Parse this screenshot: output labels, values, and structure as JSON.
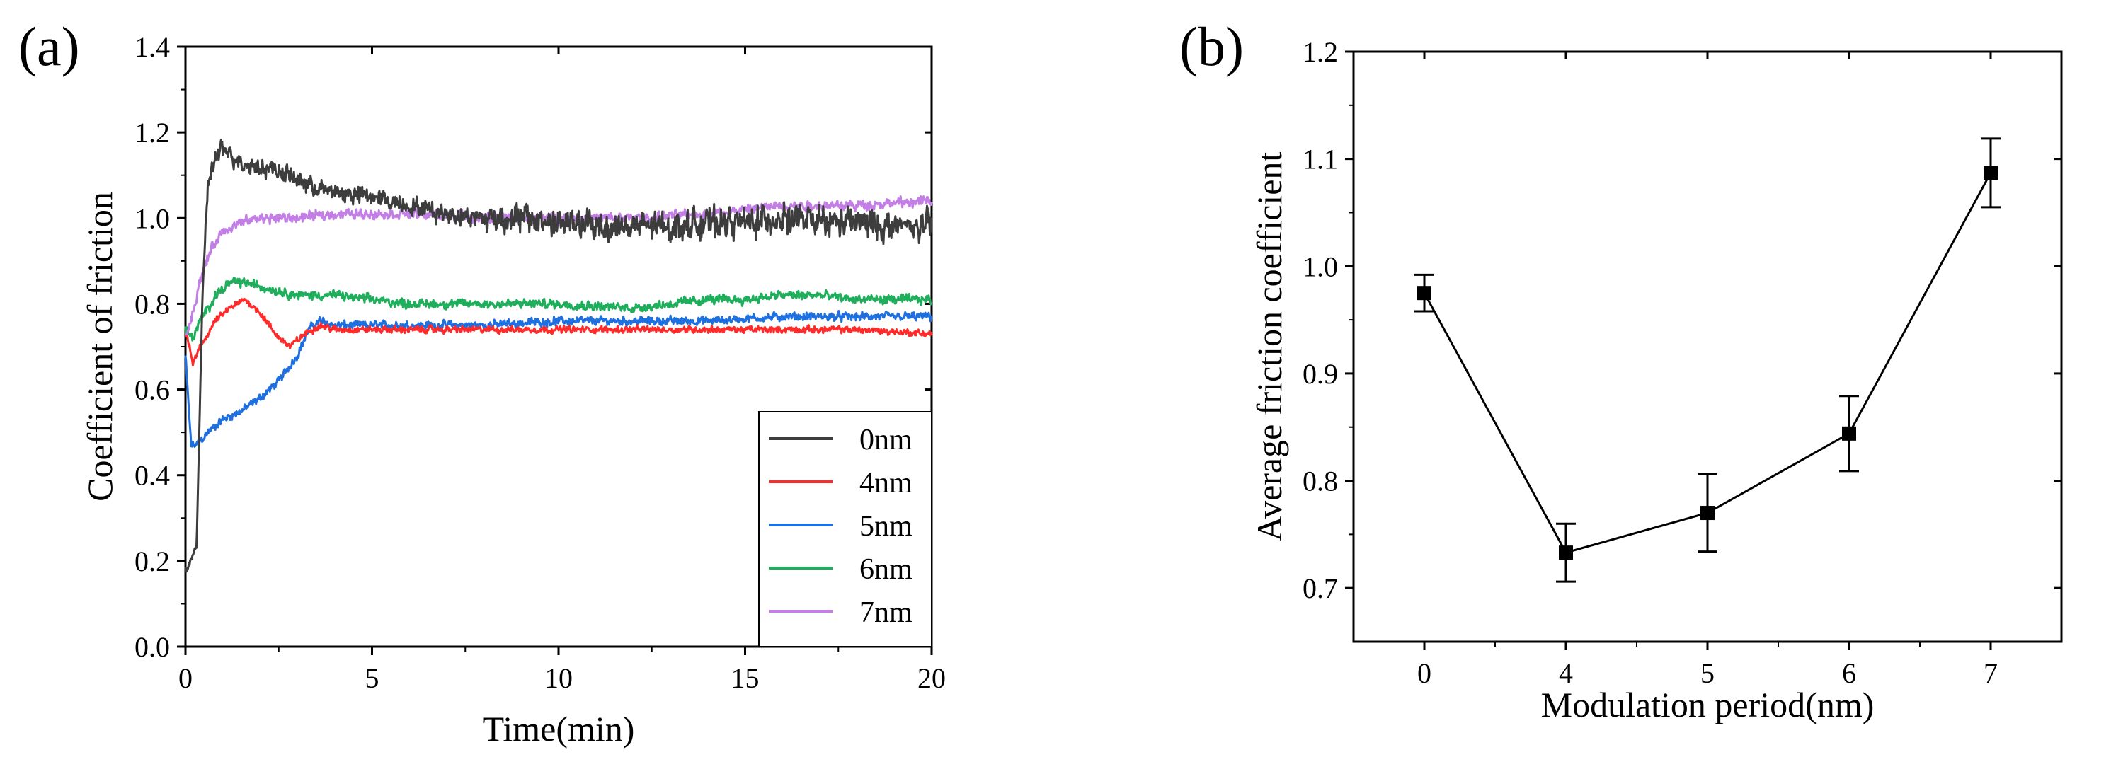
{
  "chart_data": [
    {
      "type": "line",
      "panel_label": "(a)",
      "xlabel": "Time(min)",
      "ylabel": "Coefficient of friction",
      "xlim": [
        0,
        20
      ],
      "ylim": [
        0,
        1.4
      ],
      "xticks": [
        0,
        5,
        10,
        15,
        20
      ],
      "xtick_labels": [
        "0",
        "5",
        "10",
        "15",
        "20"
      ],
      "yticks": [
        0,
        0.2,
        0.4,
        0.6,
        0.8,
        1.0,
        1.2,
        1.4
      ],
      "ytick_labels": [
        "0.0",
        "0.2",
        "0.4",
        "0.6",
        "0.8",
        "1.0",
        "1.2",
        "1.4"
      ],
      "legend_position": "bottom-right",
      "series": [
        {
          "name": "0nm",
          "color": "#3d3d3d",
          "noise": 0.022,
          "x": [
            0,
            0.15,
            0.3,
            0.45,
            0.6,
            0.8,
            1.0,
            1.5,
            2.0,
            2.5,
            3.0,
            3.5,
            4.0,
            5.0,
            6.0,
            7.0,
            8.0,
            9.0,
            10.0,
            11.0,
            12.0,
            13.0,
            14.0,
            15.0,
            16.0,
            17.0,
            18.0,
            19.0,
            20.0
          ],
          "y": [
            0.18,
            0.2,
            0.24,
            0.8,
            1.08,
            1.14,
            1.16,
            1.13,
            1.12,
            1.11,
            1.09,
            1.07,
            1.06,
            1.05,
            1.03,
            1.01,
            1.0,
            1.0,
            0.99,
            0.98,
            0.98,
            0.98,
            0.99,
            0.99,
            1.0,
            0.99,
            0.99,
            0.98,
            0.98
          ]
        },
        {
          "name": "4nm",
          "color": "#ff2b2b",
          "noise": 0.008,
          "x": [
            0,
            0.2,
            0.4,
            0.8,
            1.2,
            1.6,
            2.0,
            2.4,
            2.8,
            3.2,
            3.6,
            4.0,
            5.0,
            6.0,
            8.0,
            10.0,
            12.0,
            14.0,
            16.0,
            18.0,
            20.0
          ],
          "y": [
            0.74,
            0.66,
            0.7,
            0.76,
            0.79,
            0.81,
            0.78,
            0.73,
            0.7,
            0.73,
            0.75,
            0.74,
            0.74,
            0.74,
            0.74,
            0.74,
            0.74,
            0.74,
            0.74,
            0.74,
            0.73
          ]
        },
        {
          "name": "5nm",
          "color": "#1e6fe0",
          "noise": 0.01,
          "x": [
            0,
            0.15,
            0.3,
            0.6,
            1.0,
            1.5,
            2.0,
            2.5,
            3.0,
            3.3,
            3.6,
            4.0,
            5.0,
            6.0,
            8.0,
            10.0,
            12.0,
            14.0,
            16.0,
            18.0,
            20.0
          ],
          "y": [
            0.68,
            0.47,
            0.47,
            0.5,
            0.53,
            0.55,
            0.58,
            0.62,
            0.68,
            0.74,
            0.76,
            0.75,
            0.75,
            0.75,
            0.75,
            0.76,
            0.76,
            0.76,
            0.77,
            0.77,
            0.77
          ]
        },
        {
          "name": "6nm",
          "color": "#1fae5b",
          "noise": 0.011,
          "x": [
            0,
            0.2,
            0.4,
            0.8,
            1.2,
            1.6,
            2.0,
            2.5,
            3.0,
            3.5,
            4.0,
            5.0,
            6.0,
            8.0,
            10.0,
            12.0,
            13.0,
            14.0,
            15.0,
            16.0,
            17.0,
            18.0,
            19.0,
            20.0
          ],
          "y": [
            0.74,
            0.72,
            0.76,
            0.82,
            0.85,
            0.85,
            0.84,
            0.83,
            0.82,
            0.82,
            0.82,
            0.81,
            0.8,
            0.8,
            0.8,
            0.79,
            0.8,
            0.81,
            0.81,
            0.82,
            0.82,
            0.81,
            0.81,
            0.81
          ]
        },
        {
          "name": "7nm",
          "color": "#c37fe6",
          "noise": 0.012,
          "x": [
            0,
            0.2,
            0.4,
            0.7,
            1.0,
            1.5,
            2.0,
            3.0,
            4.0,
            5.0,
            6.0,
            8.0,
            10.0,
            12.0,
            14.0,
            16.0,
            18.0,
            20.0
          ],
          "y": [
            0.72,
            0.78,
            0.86,
            0.93,
            0.97,
            0.99,
            1.0,
            1.0,
            1.01,
            1.01,
            1.01,
            1.0,
            1.0,
            1.0,
            1.01,
            1.03,
            1.03,
            1.04
          ]
        }
      ]
    },
    {
      "type": "line",
      "panel_label": "(b)",
      "xlabel": "Modulation period(nm)",
      "ylabel": "Average friction coefficient",
      "categories": [
        "0",
        "4",
        "5",
        "6",
        "7"
      ],
      "ylim": [
        0.65,
        1.2
      ],
      "yticks": [
        0.7,
        0.8,
        0.9,
        1.0,
        1.1,
        1.2
      ],
      "ytick_labels": [
        "0.7",
        "0.8",
        "0.9",
        "1.0",
        "1.1",
        "1.2"
      ],
      "series": [
        {
          "name": "Average friction coefficient",
          "color": "#000000",
          "values": [
            0.975,
            0.733,
            0.77,
            0.844,
            1.087
          ],
          "error": [
            0.017,
            0.027,
            0.036,
            0.035,
            0.032
          ]
        }
      ]
    }
  ]
}
